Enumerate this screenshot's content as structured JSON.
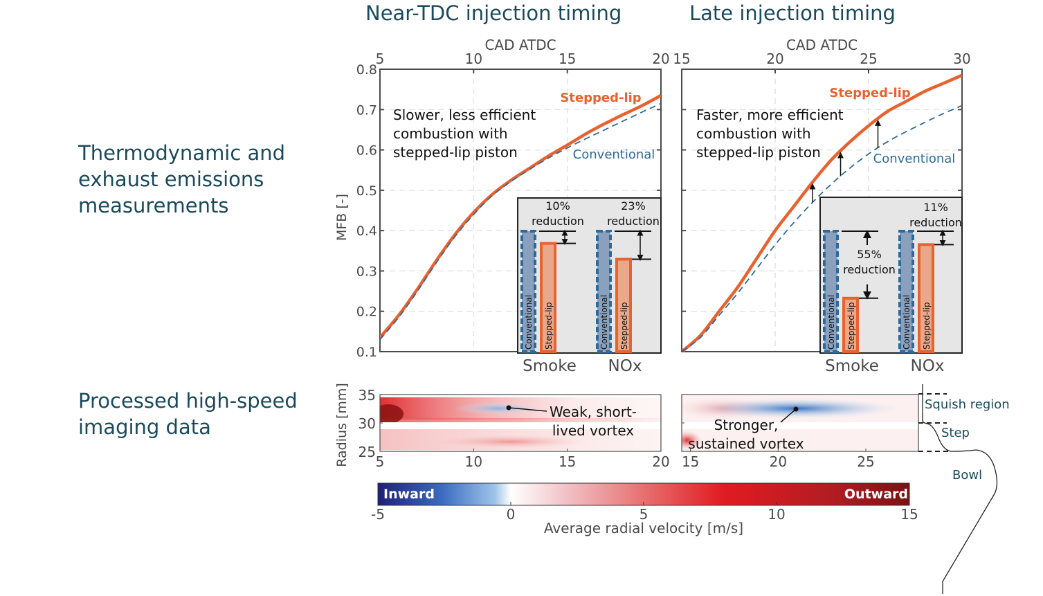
{
  "panel_titles": {
    "left": "Near-TDC injection timing",
    "right": "Late injection timing"
  },
  "row_labels": {
    "top": "Thermodynamic and\nexhaust emissions\nmeasurements",
    "bottom": "Processed high-speed\nimaging data"
  },
  "colors": {
    "stepped_lip": "#e8622f",
    "conventional": "#2c6a9c",
    "label_teal": "#1b4a5c",
    "axis": "#4a4a4a",
    "inset_bg": "#e6e6e6",
    "bar_conventional_fill": "#8aa0bd",
    "bar_stepped_fill": "#eaa88a"
  },
  "chart_data": [
    {
      "id": "mfb-near-tdc",
      "type": "line",
      "title": "Near-TDC injection timing",
      "xlabel": "CAD ATDC",
      "ylabel": "MFB [-]",
      "xlim": [
        5,
        20
      ],
      "ylim": [
        0.1,
        0.8
      ],
      "xticks": [
        5,
        10,
        15,
        20
      ],
      "yticks": [
        0.1,
        0.2,
        0.3,
        0.4,
        0.5,
        0.6,
        0.7,
        0.8
      ],
      "grid": true,
      "annotation": "Slower, less efficient\ncombustion with\nstepped-lip piston",
      "series": [
        {
          "name": "Stepped-lip",
          "style": "solid",
          "x": [
            5,
            6,
            7,
            8,
            9,
            10,
            11,
            12,
            13,
            14,
            15,
            16,
            17,
            18,
            19,
            20
          ],
          "y": [
            0.135,
            0.19,
            0.255,
            0.325,
            0.39,
            0.445,
            0.49,
            0.525,
            0.555,
            0.585,
            0.612,
            0.64,
            0.665,
            0.688,
            0.71,
            0.735
          ]
        },
        {
          "name": "Conventional",
          "style": "dashed",
          "x": [
            5,
            6,
            7,
            8,
            9,
            10,
            11,
            12,
            13,
            14,
            15,
            16,
            17,
            18,
            19,
            20
          ],
          "y": [
            0.13,
            0.185,
            0.25,
            0.32,
            0.385,
            0.44,
            0.487,
            0.522,
            0.552,
            0.58,
            0.605,
            0.628,
            0.65,
            0.672,
            0.694,
            0.715
          ]
        }
      ],
      "inset": {
        "categories": [
          "Smoke",
          "NOx"
        ],
        "bar_labels": [
          "Conventional",
          "Stepped-lip"
        ],
        "relative_values": {
          "Smoke": [
            1.0,
            0.9
          ],
          "NOx": [
            1.0,
            0.77
          ]
        },
        "reductions": [
          "10%\nreduction",
          "23%\nreduction"
        ]
      }
    },
    {
      "id": "mfb-late",
      "type": "line",
      "title": "Late injection timing",
      "xlabel": "CAD ATDC",
      "ylabel": "MFB [-]",
      "xlim": [
        15,
        30
      ],
      "ylim": [
        0.1,
        0.8
      ],
      "xticks": [
        15,
        20,
        25,
        30
      ],
      "yticks": [
        0.1,
        0.2,
        0.3,
        0.4,
        0.5,
        0.6,
        0.7,
        0.8
      ],
      "grid": true,
      "annotation": "Faster, more efficient\ncombustion with\nstepped-lip piston",
      "series": [
        {
          "name": "Stepped-lip",
          "style": "solid",
          "x": [
            15,
            16,
            17,
            18,
            19,
            20,
            21,
            22,
            23,
            24,
            25,
            26,
            27,
            28,
            29,
            30
          ],
          "y": [
            0.1,
            0.14,
            0.2,
            0.26,
            0.33,
            0.4,
            0.46,
            0.52,
            0.575,
            0.62,
            0.66,
            0.695,
            0.72,
            0.745,
            0.765,
            0.785
          ]
        },
        {
          "name": "Conventional",
          "style": "dashed",
          "x": [
            15,
            16,
            17,
            18,
            19,
            20,
            21,
            22,
            23,
            24,
            25,
            26,
            27,
            28,
            29,
            30
          ],
          "y": [
            0.1,
            0.135,
            0.19,
            0.245,
            0.305,
            0.365,
            0.42,
            0.47,
            0.515,
            0.555,
            0.59,
            0.62,
            0.645,
            0.668,
            0.69,
            0.71
          ]
        }
      ],
      "arrows_at_x": [
        22,
        23.5,
        25.5
      ],
      "inset": {
        "categories": [
          "Smoke",
          "NOx"
        ],
        "bar_labels": [
          "Conventional",
          "Stepped-lip"
        ],
        "relative_values": {
          "Smoke": [
            1.0,
            0.45
          ],
          "NOx": [
            1.0,
            0.89
          ]
        },
        "reductions": [
          "55%\nreduction",
          "11%\nreduction"
        ]
      }
    },
    {
      "id": "piv-near-tdc",
      "type": "heatmap",
      "xlabel": "",
      "ylabel": "Radius [mm]",
      "xlim": [
        5,
        20
      ],
      "ylim": [
        25,
        35
      ],
      "xticks": [
        5,
        10,
        15,
        20
      ],
      "yticks": [
        25,
        30,
        35
      ],
      "annotation": "Weak, short-\nlived vortex"
    },
    {
      "id": "piv-late",
      "type": "heatmap",
      "xlim": [
        14.5,
        28
      ],
      "ylim": [
        25,
        35
      ],
      "xticks": [
        15,
        20,
        25
      ],
      "annotation": "Stronger,\nsustained vortex"
    },
    {
      "id": "colorbar",
      "type": "colorbar",
      "xlabel": "Average radial velocity [m/s]",
      "range": [
        -5,
        15
      ],
      "ticks": [
        -5,
        0,
        5,
        10,
        15
      ],
      "end_labels": [
        "Inward",
        "Outward"
      ]
    }
  ],
  "piston_labels": [
    "Squish region",
    "Step",
    "Bowl"
  ]
}
